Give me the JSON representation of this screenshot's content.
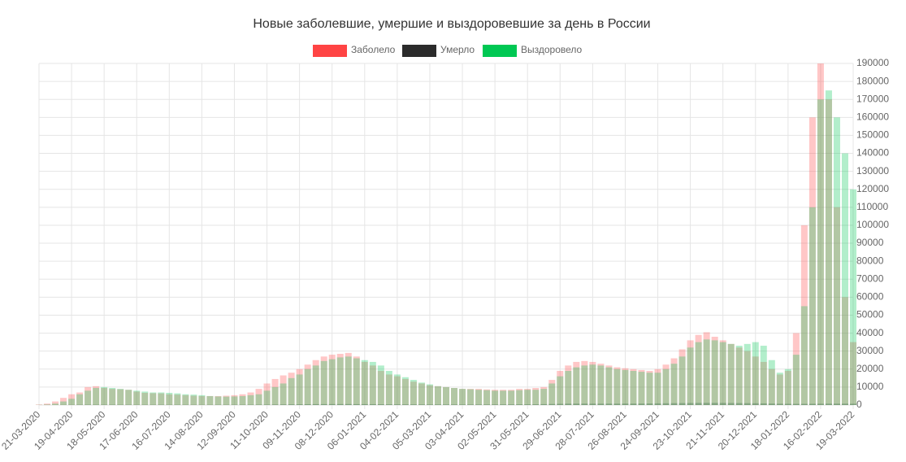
{
  "chart_data": {
    "type": "bar",
    "title": "Новые заболевшие, умершие и выздоровевшие за день в России",
    "categories": [
      "21-03-2020",
      null,
      null,
      null,
      "19-04-2020",
      null,
      null,
      null,
      "18-05-2020",
      null,
      null,
      null,
      "17-06-2020",
      null,
      null,
      null,
      "16-07-2020",
      null,
      null,
      null,
      "14-08-2020",
      null,
      null,
      null,
      "12-09-2020",
      null,
      null,
      null,
      "11-10-2020",
      null,
      null,
      null,
      "09-11-2020",
      null,
      null,
      null,
      "08-12-2020",
      null,
      null,
      null,
      "06-01-2021",
      null,
      null,
      null,
      "04-02-2021",
      null,
      null,
      null,
      "05-03-2021",
      null,
      null,
      null,
      "03-04-2021",
      null,
      null,
      null,
      "02-05-2021",
      null,
      null,
      null,
      "31-05-2021",
      null,
      null,
      null,
      "29-06-2021",
      null,
      null,
      null,
      "28-07-2021",
      null,
      null,
      null,
      "26-08-2021",
      null,
      null,
      null,
      "24-09-2021",
      null,
      null,
      null,
      "23-10-2021",
      null,
      null,
      null,
      "21-11-2021",
      null,
      null,
      null,
      "20-12-2021",
      null,
      null,
      null,
      "18-01-2022",
      null,
      null,
      null,
      "16-02-2022",
      null,
      null,
      null,
      "19-03-2022"
    ],
    "series": [
      {
        "name": "Заболело",
        "color": "#ff4444",
        "values": [
          300,
          800,
          2000,
          4000,
          6000,
          7000,
          10000,
          10500,
          9500,
          9000,
          8800,
          8500,
          7500,
          6800,
          6600,
          6500,
          6000,
          5800,
          5500,
          5200,
          5000,
          5000,
          5000,
          5200,
          5500,
          6000,
          7000,
          9000,
          12000,
          14500,
          16500,
          18000,
          20000,
          22500,
          25000,
          27000,
          28000,
          28500,
          29000,
          27000,
          24000,
          22000,
          19000,
          17000,
          16000,
          14500,
          13000,
          12000,
          11000,
          10500,
          10000,
          9500,
          9000,
          9000,
          9000,
          8700,
          8500,
          8500,
          8500,
          9000,
          9000,
          9500,
          10000,
          14000,
          19000,
          22000,
          24000,
          24500,
          24000,
          23000,
          22000,
          21000,
          20500,
          20000,
          19500,
          19000,
          20000,
          22500,
          26000,
          31000,
          36000,
          39000,
          40500,
          38000,
          36000,
          34000,
          32000,
          30000,
          27000,
          24000,
          20000,
          17000,
          19000,
          40000,
          100000,
          160000,
          190000,
          170000,
          110000,
          60000,
          35000
        ]
      },
      {
        "name": "Умерло",
        "color": "#2b2b2b",
        "values": [
          0,
          2,
          10,
          40,
          80,
          120,
          150,
          170,
          160,
          150,
          140,
          120,
          110,
          100,
          110,
          120,
          110,
          100,
          100,
          90,
          90,
          90,
          100,
          110,
          120,
          140,
          170,
          200,
          230,
          280,
          320,
          370,
          420,
          470,
          500,
          520,
          540,
          560,
          550,
          500,
          500,
          480,
          440,
          400,
          380,
          360,
          340,
          320,
          300,
          300,
          290,
          280,
          280,
          280,
          280,
          300,
          320,
          340,
          360,
          400,
          400,
          420,
          500,
          600,
          700,
          780,
          800,
          790,
          780,
          790,
          800,
          800,
          820,
          820,
          850,
          900,
          950,
          1000,
          1050,
          1100,
          1150,
          1200,
          1220,
          1200,
          1180,
          1150,
          1100,
          1050,
          1000,
          950,
          850,
          760,
          700,
          680,
          680,
          720,
          760,
          790,
          800,
          780,
          750
        ]
      },
      {
        "name": "Выздоровело",
        "color": "#00c853",
        "values": [
          100,
          300,
          800,
          2000,
          3500,
          6000,
          8000,
          9500,
          10000,
          9500,
          9000,
          8500,
          8000,
          7500,
          7000,
          7000,
          6800,
          6500,
          6000,
          5800,
          5500,
          5000,
          4800,
          4700,
          4800,
          5000,
          5500,
          6000,
          8000,
          10000,
          12000,
          15000,
          17000,
          20000,
          22000,
          24500,
          25500,
          26500,
          27000,
          26000,
          25000,
          24000,
          22000,
          19000,
          17000,
          15500,
          14000,
          12500,
          11500,
          10500,
          10000,
          9500,
          9000,
          8800,
          8500,
          8300,
          8000,
          8000,
          8000,
          8300,
          8500,
          8500,
          9000,
          12000,
          16000,
          19000,
          21000,
          22000,
          22500,
          22000,
          21000,
          20000,
          19500,
          19000,
          18500,
          18000,
          18000,
          20000,
          23000,
          27000,
          32000,
          35000,
          36500,
          36000,
          35000,
          34000,
          33000,
          34000,
          35000,
          33000,
          25000,
          18000,
          20000,
          28000,
          55000,
          110000,
          170000,
          175000,
          160000,
          140000,
          120000
        ]
      }
    ],
    "ylim": [
      0,
      190000
    ],
    "yticks": [
      0,
      10000,
      20000,
      30000,
      40000,
      50000,
      60000,
      70000,
      80000,
      90000,
      100000,
      110000,
      120000,
      130000,
      140000,
      150000,
      160000,
      170000,
      180000,
      190000
    ],
    "grid": true
  }
}
